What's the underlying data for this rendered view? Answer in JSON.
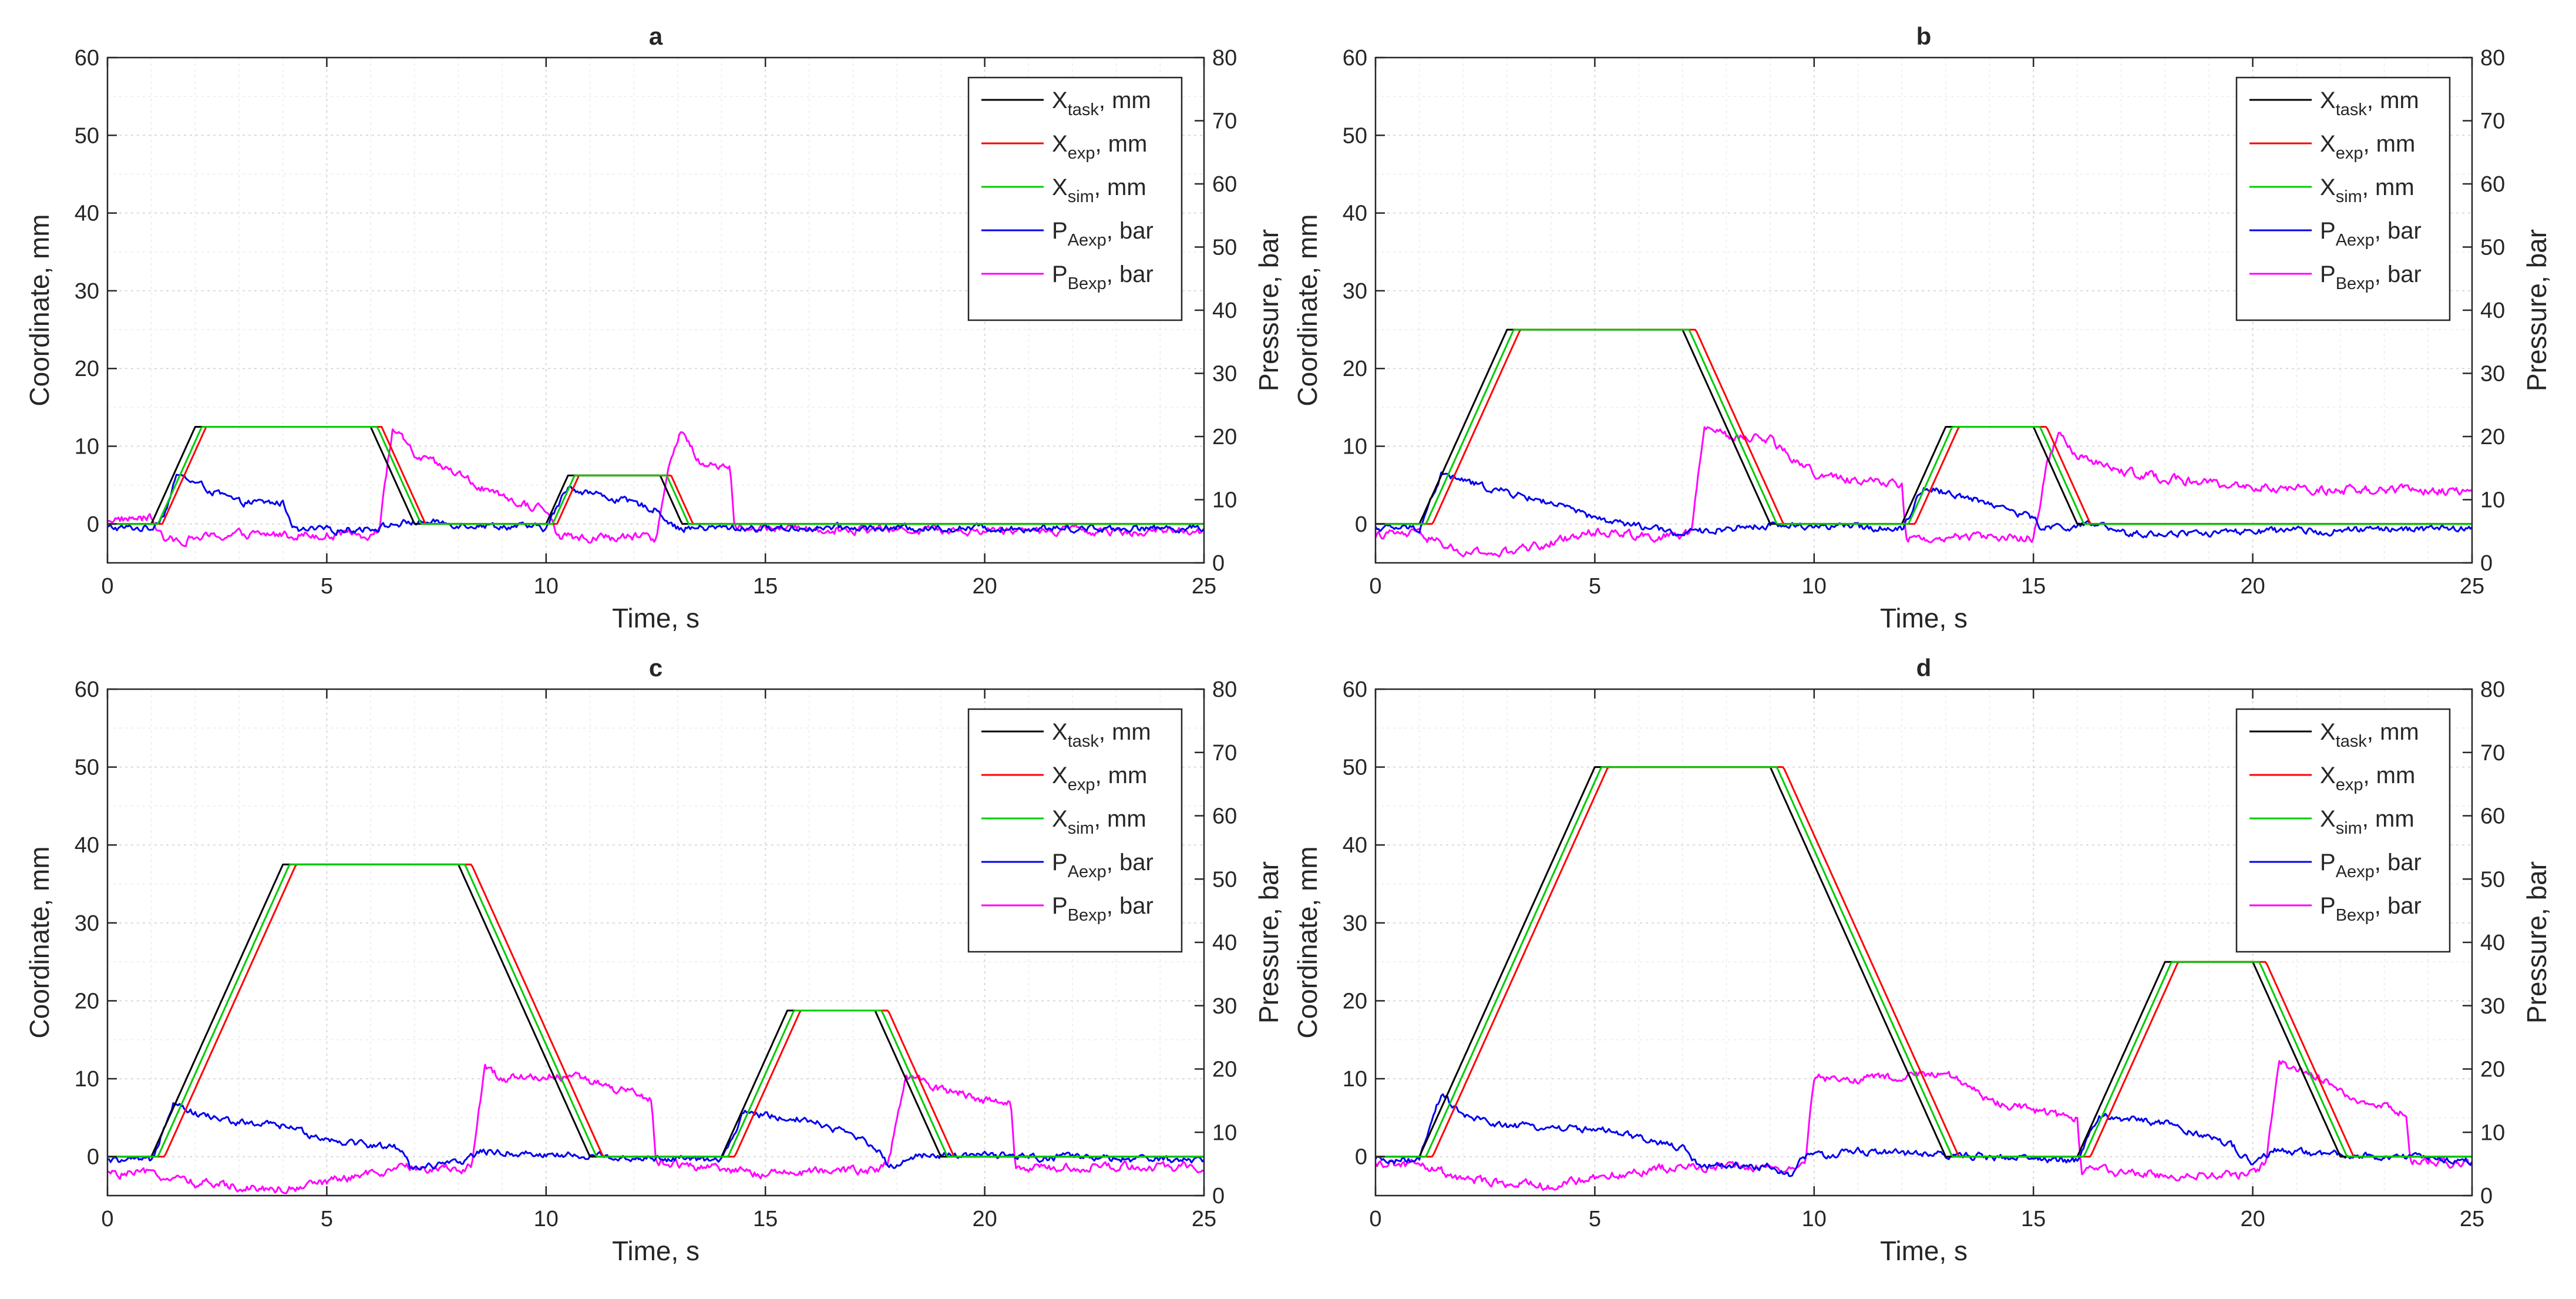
{
  "figure": {
    "legend_location": "top-right"
  },
  "legend": [
    {
      "key": "x_task",
      "base": "X",
      "sub": "task",
      "suffix": ", mm",
      "color": "#000000"
    },
    {
      "key": "x_exp",
      "base": "X",
      "sub": "exp",
      "suffix": ", mm",
      "color": "#ff0000"
    },
    {
      "key": "x_sim",
      "base": "X",
      "sub": "sim",
      "suffix": ", mm",
      "color": "#00cc00"
    },
    {
      "key": "p_a",
      "base": "P",
      "sub": "Aexp",
      "suffix": ", bar",
      "color": "#0000ee"
    },
    {
      "key": "p_b",
      "base": "P",
      "sub": "Bexp",
      "suffix": ", bar",
      "color": "#ff00ff"
    }
  ],
  "axes": {
    "xlabel": "Time, s",
    "ylabel_left": "Coordinate, mm",
    "ylabel_right": "Pressure, bar",
    "xlim": [
      0,
      25
    ],
    "ylim_left": [
      -5,
      60
    ],
    "ylim_right": [
      0,
      80
    ],
    "xticks": [
      "0",
      "5",
      "10",
      "15",
      "20",
      "25"
    ],
    "yticks_left": [
      "0",
      "10",
      "20",
      "30",
      "40",
      "50",
      "60"
    ],
    "yticks_right": [
      "0",
      "10",
      "20",
      "30",
      "40",
      "50",
      "60",
      "70",
      "80"
    ],
    "grid": true
  },
  "chart_data": [
    {
      "type": "line",
      "title": "a",
      "task_points": [
        [
          0,
          0
        ],
        [
          1,
          0
        ],
        [
          2,
          12.5
        ],
        [
          6,
          12.5
        ],
        [
          7,
          0
        ],
        [
          10,
          0
        ],
        [
          10.5,
          6.25
        ],
        [
          12.6,
          6.25
        ],
        [
          13.1,
          0
        ],
        [
          25,
          0
        ]
      ],
      "exp_delay": 0.25,
      "sim_delay": 0.15,
      "pa_points": [
        [
          0,
          5.5
        ],
        [
          1,
          5.5
        ],
        [
          1.3,
          8
        ],
        [
          1.6,
          14
        ],
        [
          2.5,
          11
        ],
        [
          3,
          9.5
        ],
        [
          4,
          9.5
        ],
        [
          4.3,
          5
        ],
        [
          6,
          5.5
        ],
        [
          7,
          6.5
        ],
        [
          10,
          5.5
        ],
        [
          10.5,
          12
        ],
        [
          12.5,
          8.5
        ],
        [
          13,
          5.5
        ],
        [
          25,
          5.5
        ]
      ],
      "pb_points": [
        [
          0,
          7
        ],
        [
          1,
          7
        ],
        [
          1.3,
          3.5
        ],
        [
          3,
          4.5
        ],
        [
          6,
          4.5
        ],
        [
          6.2,
          5.5
        ],
        [
          6.5,
          21.5
        ],
        [
          7,
          17
        ],
        [
          8,
          14
        ],
        [
          9,
          10
        ],
        [
          10,
          8.5
        ],
        [
          10.3,
          4
        ],
        [
          12.5,
          4
        ],
        [
          12.8,
          15
        ],
        [
          13.1,
          21
        ],
        [
          13.5,
          16
        ],
        [
          14.2,
          15
        ],
        [
          14.3,
          5.5
        ],
        [
          25,
          5
        ]
      ]
    },
    {
      "type": "line",
      "title": "b",
      "task_points": [
        [
          0,
          0
        ],
        [
          1,
          0
        ],
        [
          3,
          25
        ],
        [
          7,
          25
        ],
        [
          9,
          0
        ],
        [
          12,
          0
        ],
        [
          13,
          12.5
        ],
        [
          15,
          12.5
        ],
        [
          16,
          0
        ],
        [
          25,
          0
        ]
      ],
      "exp_delay": 0.3,
      "sim_delay": 0.15,
      "pa_points": [
        [
          0,
          5.5
        ],
        [
          1,
          5.5
        ],
        [
          1.5,
          14
        ],
        [
          2.5,
          12
        ],
        [
          4,
          9.5
        ],
        [
          5,
          7
        ],
        [
          7,
          4.5
        ],
        [
          8,
          5.5
        ],
        [
          9,
          6
        ],
        [
          12,
          5.5
        ],
        [
          12.5,
          12
        ],
        [
          14,
          9.5
        ],
        [
          15,
          7
        ],
        [
          15.2,
          5.5
        ],
        [
          16.5,
          6
        ],
        [
          17,
          4.5
        ],
        [
          25,
          5.5
        ]
      ],
      "pb_points": [
        [
          0,
          4.5
        ],
        [
          1,
          4.5
        ],
        [
          2,
          1.5
        ],
        [
          3,
          1.5
        ],
        [
          5,
          5
        ],
        [
          7,
          4
        ],
        [
          7.2,
          5
        ],
        [
          7.5,
          21.5
        ],
        [
          8,
          20
        ],
        [
          9,
          19.5
        ],
        [
          10,
          14
        ],
        [
          11,
          13
        ],
        [
          12,
          12.5
        ],
        [
          12.1,
          4
        ],
        [
          15,
          4
        ],
        [
          15.3,
          15
        ],
        [
          15.6,
          21
        ],
        [
          16,
          17
        ],
        [
          17,
          14.5
        ],
        [
          18,
          13.5
        ],
        [
          19,
          12.5
        ],
        [
          20,
          12
        ],
        [
          22,
          11.5
        ],
        [
          25,
          11.5
        ]
      ]
    },
    {
      "type": "line",
      "title": "c",
      "task_points": [
        [
          0,
          0
        ],
        [
          1,
          0
        ],
        [
          4,
          37.5
        ],
        [
          8,
          37.5
        ],
        [
          11,
          0
        ],
        [
          14,
          0
        ],
        [
          15.5,
          18.75
        ],
        [
          17.5,
          18.75
        ],
        [
          19,
          0
        ],
        [
          25,
          0
        ]
      ],
      "exp_delay": 0.3,
      "sim_delay": 0.15,
      "pa_points": [
        [
          0,
          5.5
        ],
        [
          1,
          5.5
        ],
        [
          1.5,
          15
        ],
        [
          2,
          13
        ],
        [
          3,
          11.5
        ],
        [
          4,
          11
        ],
        [
          5,
          9
        ],
        [
          6,
          8
        ],
        [
          6.7,
          7.5
        ],
        [
          6.9,
          4.5
        ],
        [
          8,
          5
        ],
        [
          8.5,
          7
        ],
        [
          10,
          6.5
        ],
        [
          14,
          5.5
        ],
        [
          14.5,
          13
        ],
        [
          16,
          12
        ],
        [
          17,
          9.5
        ],
        [
          17.5,
          8
        ],
        [
          17.8,
          4.5
        ],
        [
          18.5,
          6.5
        ],
        [
          25,
          5.5
        ]
      ],
      "pb_points": [
        [
          0,
          3.5
        ],
        [
          1,
          3.5
        ],
        [
          2,
          2
        ],
        [
          4,
          1
        ],
        [
          7,
          4.5
        ],
        [
          8,
          4
        ],
        [
          8.3,
          5
        ],
        [
          8.6,
          20
        ],
        [
          9,
          18.5
        ],
        [
          10.5,
          19
        ],
        [
          11,
          18
        ],
        [
          12,
          16
        ],
        [
          12.4,
          15
        ],
        [
          12.5,
          5.5
        ],
        [
          14,
          4
        ],
        [
          15,
          3.5
        ],
        [
          17.5,
          4
        ],
        [
          17.8,
          5
        ],
        [
          18.2,
          19
        ],
        [
          19,
          17
        ],
        [
          20,
          15
        ],
        [
          20.6,
          14.5
        ],
        [
          20.7,
          4.5
        ],
        [
          25,
          4.5
        ]
      ]
    },
    {
      "type": "line",
      "title": "d",
      "task_points": [
        [
          0,
          0
        ],
        [
          1,
          0
        ],
        [
          5,
          50
        ],
        [
          9,
          50
        ],
        [
          13,
          0
        ],
        [
          16,
          0
        ],
        [
          18,
          25
        ],
        [
          20,
          25
        ],
        [
          22,
          0
        ],
        [
          25,
          0
        ]
      ],
      "exp_delay": 0.3,
      "sim_delay": 0.15,
      "pa_points": [
        [
          0,
          5.5
        ],
        [
          1,
          5.5
        ],
        [
          1.5,
          16
        ],
        [
          2,
          12.5
        ],
        [
          3,
          11
        ],
        [
          5,
          10.5
        ],
        [
          6,
          9
        ],
        [
          7,
          7.5
        ],
        [
          7.3,
          5
        ],
        [
          9,
          4.5
        ],
        [
          9.5,
          3
        ],
        [
          9.7,
          6
        ],
        [
          11,
          7
        ],
        [
          16,
          5.5
        ],
        [
          16.5,
          12.5
        ],
        [
          18,
          11.5
        ],
        [
          19.5,
          8
        ],
        [
          20,
          5
        ],
        [
          20.5,
          7
        ],
        [
          25,
          5.5
        ]
      ],
      "pb_points": [
        [
          0,
          5
        ],
        [
          1,
          5
        ],
        [
          2,
          2.5
        ],
        [
          4,
          1.5
        ],
        [
          6,
          4
        ],
        [
          7,
          4.5
        ],
        [
          9.5,
          4.5
        ],
        [
          9.8,
          6
        ],
        [
          10,
          18.5
        ],
        [
          12,
          18.5
        ],
        [
          13,
          19.5
        ],
        [
          14,
          15
        ],
        [
          15,
          13.5
        ],
        [
          16,
          12
        ],
        [
          16.1,
          4
        ],
        [
          19,
          3
        ],
        [
          20,
          3.5
        ],
        [
          20.3,
          5
        ],
        [
          20.6,
          21
        ],
        [
          21.5,
          18.5
        ],
        [
          22.5,
          15
        ],
        [
          23.5,
          13
        ],
        [
          23.6,
          5.5
        ],
        [
          25,
          5
        ]
      ]
    }
  ]
}
